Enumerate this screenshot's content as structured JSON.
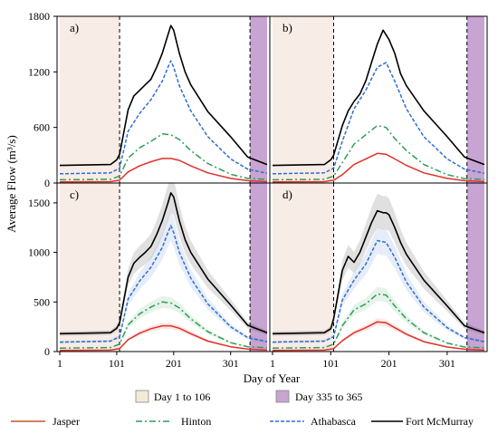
{
  "chart_data": {
    "type": "line",
    "ylabel": "Average Flow (m³/s)",
    "xlabel": "Day of Year",
    "xlim": [
      1,
      365
    ],
    "xticks": [
      1,
      101,
      201,
      301
    ],
    "shaded_regions": [
      {
        "label": "Day 1 to 106",
        "start": 1,
        "end": 106,
        "color": "#f8ece6"
      },
      {
        "label": "Day 335 to 365",
        "start": 335,
        "end": 365,
        "color": "#c8a4d2"
      }
    ],
    "series_styles": [
      {
        "name": "Jasper",
        "color": "#e0312a",
        "dash": ""
      },
      {
        "name": "Hinton",
        "color": "#2e9e55",
        "dash": "7,3,2,3"
      },
      {
        "name": "Athabasca",
        "color": "#2f6ed1",
        "dash": "4,2"
      },
      {
        "name": "Fort McMurray",
        "color": "#000000",
        "dash": ""
      }
    ],
    "panels": [
      {
        "label": "a)",
        "ylim": [
          0,
          1800
        ],
        "yticks": [
          0,
          600,
          1200,
          1800
        ],
        "scenario_shading": false,
        "series": [
          {
            "x": [
              1,
              90,
              106,
              121,
              141,
              161,
              181,
              196,
              211,
              231,
              261,
              301,
              331,
              365
            ],
            "values": [
              12,
              15,
              30,
              120,
              185,
              230,
              265,
              265,
              245,
              185,
              110,
              50,
              25,
              15
            ]
          },
          {
            "x": [
              1,
              90,
              106,
              121,
              141,
              161,
              181,
              196,
              211,
              231,
              261,
              301,
              331,
              365
            ],
            "values": [
              35,
              40,
              75,
              270,
              380,
              450,
              530,
              520,
              470,
              350,
              210,
              95,
              50,
              38
            ]
          },
          {
            "x": [
              1,
              90,
              106,
              121,
              141,
              161,
              171,
              181,
              191,
              196,
              201,
              211,
              231,
              261,
              301,
              331,
              365
            ],
            "values": [
              100,
              110,
              160,
              560,
              750,
              900,
              1000,
              1100,
              1250,
              1320,
              1250,
              1050,
              780,
              500,
              260,
              150,
              105
            ]
          },
          {
            "x": [
              1,
              90,
              101,
              106,
              121,
              131,
              141,
              151,
              161,
              171,
              181,
              191,
              196,
              201,
              211,
              221,
              231,
              261,
              301,
              331,
              365
            ],
            "values": [
              190,
              200,
              250,
              310,
              790,
              940,
              1000,
              1060,
              1120,
              1250,
              1400,
              1600,
              1700,
              1650,
              1400,
              1200,
              1060,
              770,
              500,
              280,
              200
            ]
          }
        ]
      },
      {
        "label": "b)",
        "ylim": [
          0,
          1800
        ],
        "yticks": [
          0,
          600,
          1200,
          1800
        ],
        "scenario_shading": false,
        "series": [
          {
            "x": [
              1,
              90,
              106,
              121,
              141,
              161,
              181,
              196,
              211,
              231,
              261,
              301,
              331,
              365
            ],
            "values": [
              12,
              15,
              30,
              90,
              200,
              260,
              320,
              310,
              260,
              190,
              110,
              50,
              25,
              15
            ]
          },
          {
            "x": [
              1,
              90,
              106,
              121,
              141,
              161,
              181,
              196,
              211,
              231,
              261,
              301,
              331,
              365
            ],
            "values": [
              35,
              40,
              75,
              220,
              420,
              520,
              620,
              600,
              480,
              350,
              200,
              90,
              48,
              38
            ]
          },
          {
            "x": [
              1,
              90,
              106,
              121,
              141,
              161,
              181,
              196,
              211,
              231,
              261,
              301,
              331,
              365
            ],
            "values": [
              100,
              110,
              160,
              450,
              800,
              1000,
              1250,
              1300,
              1100,
              800,
              500,
              260,
              150,
              105
            ]
          },
          {
            "x": [
              1,
              90,
              101,
              106,
              121,
              131,
              141,
              151,
              161,
              171,
              181,
              191,
              196,
              201,
              211,
              221,
              231,
              261,
              301,
              331,
              365
            ],
            "values": [
              190,
              200,
              250,
              300,
              620,
              780,
              880,
              960,
              1100,
              1300,
              1500,
              1650,
              1600,
              1550,
              1400,
              1180,
              1050,
              780,
              500,
              280,
              200
            ]
          }
        ]
      },
      {
        "label": "c)",
        "ylim": [
          0,
          1700
        ],
        "yticks": [
          0,
          500,
          1000,
          1500
        ],
        "scenario_shading": true,
        "series": [
          {
            "x": [
              1,
              90,
              106,
              121,
              141,
              161,
              181,
              196,
              211,
              231,
              261,
              301,
              331,
              365
            ],
            "values": [
              12,
              15,
              30,
              120,
              185,
              230,
              260,
              260,
              235,
              180,
              105,
              48,
              25,
              15
            ]
          },
          {
            "x": [
              1,
              90,
              106,
              121,
              141,
              161,
              181,
              196,
              211,
              231,
              261,
              301,
              331,
              365
            ],
            "values": [
              35,
              40,
              75,
              270,
              380,
              450,
              500,
              490,
              440,
              330,
              200,
              90,
              48,
              38
            ]
          },
          {
            "x": [
              1,
              90,
              106,
              121,
              141,
              161,
              171,
              181,
              191,
              196,
              201,
              211,
              231,
              261,
              301,
              331,
              365
            ],
            "values": [
              95,
              105,
              150,
              530,
              710,
              850,
              950,
              1050,
              1200,
              1270,
              1200,
              1000,
              740,
              480,
              250,
              140,
              100
            ]
          },
          {
            "x": [
              1,
              90,
              101,
              106,
              121,
              131,
              141,
              151,
              161,
              171,
              181,
              191,
              196,
              201,
              211,
              221,
              231,
              261,
              301,
              331,
              365
            ],
            "values": [
              180,
              190,
              235,
              290,
              750,
              890,
              950,
              1000,
              1060,
              1180,
              1320,
              1500,
              1600,
              1560,
              1320,
              1130,
              1000,
              730,
              470,
              265,
              190
            ]
          }
        ]
      },
      {
        "label": "d)",
        "ylim": [
          0,
          1700
        ],
        "yticks": [
          0,
          500,
          1000,
          1500
        ],
        "scenario_shading": true,
        "series": [
          {
            "x": [
              1,
              90,
              106,
              121,
              141,
              161,
              181,
              196,
              211,
              231,
              261,
              301,
              331,
              365
            ],
            "values": [
              12,
              15,
              30,
              110,
              190,
              240,
              300,
              290,
              240,
              175,
              100,
              46,
              24,
              15
            ]
          },
          {
            "x": [
              1,
              90,
              106,
              121,
              141,
              161,
              181,
              196,
              211,
              231,
              261,
              301,
              331,
              365
            ],
            "values": [
              35,
              40,
              75,
              260,
              420,
              480,
              580,
              570,
              460,
              330,
              190,
              85,
              46,
              38
            ]
          },
          {
            "x": [
              1,
              90,
              106,
              121,
              141,
              161,
              181,
              196,
              211,
              231,
              261,
              301,
              331,
              365
            ],
            "values": [
              95,
              105,
              150,
              520,
              720,
              880,
              1120,
              1100,
              950,
              700,
              450,
              240,
              140,
              100
            ]
          },
          {
            "x": [
              1,
              90,
              101,
              106,
              121,
              131,
              141,
              151,
              161,
              171,
              181,
              191,
              196,
              201,
              211,
              221,
              231,
              261,
              301,
              331,
              365
            ],
            "values": [
              180,
              190,
              230,
              330,
              820,
              960,
              900,
              1000,
              1150,
              1300,
              1420,
              1400,
              1400,
              1380,
              1250,
              1100,
              980,
              720,
              460,
              260,
              190
            ]
          }
        ]
      }
    ],
    "legend": {
      "placement": "bottom",
      "period_entries": [
        "Day 1 to 106",
        "Day 335 to 365"
      ],
      "series_entries": [
        "Jasper",
        "Hinton",
        "Athabasca",
        "Fort McMurray"
      ]
    }
  }
}
